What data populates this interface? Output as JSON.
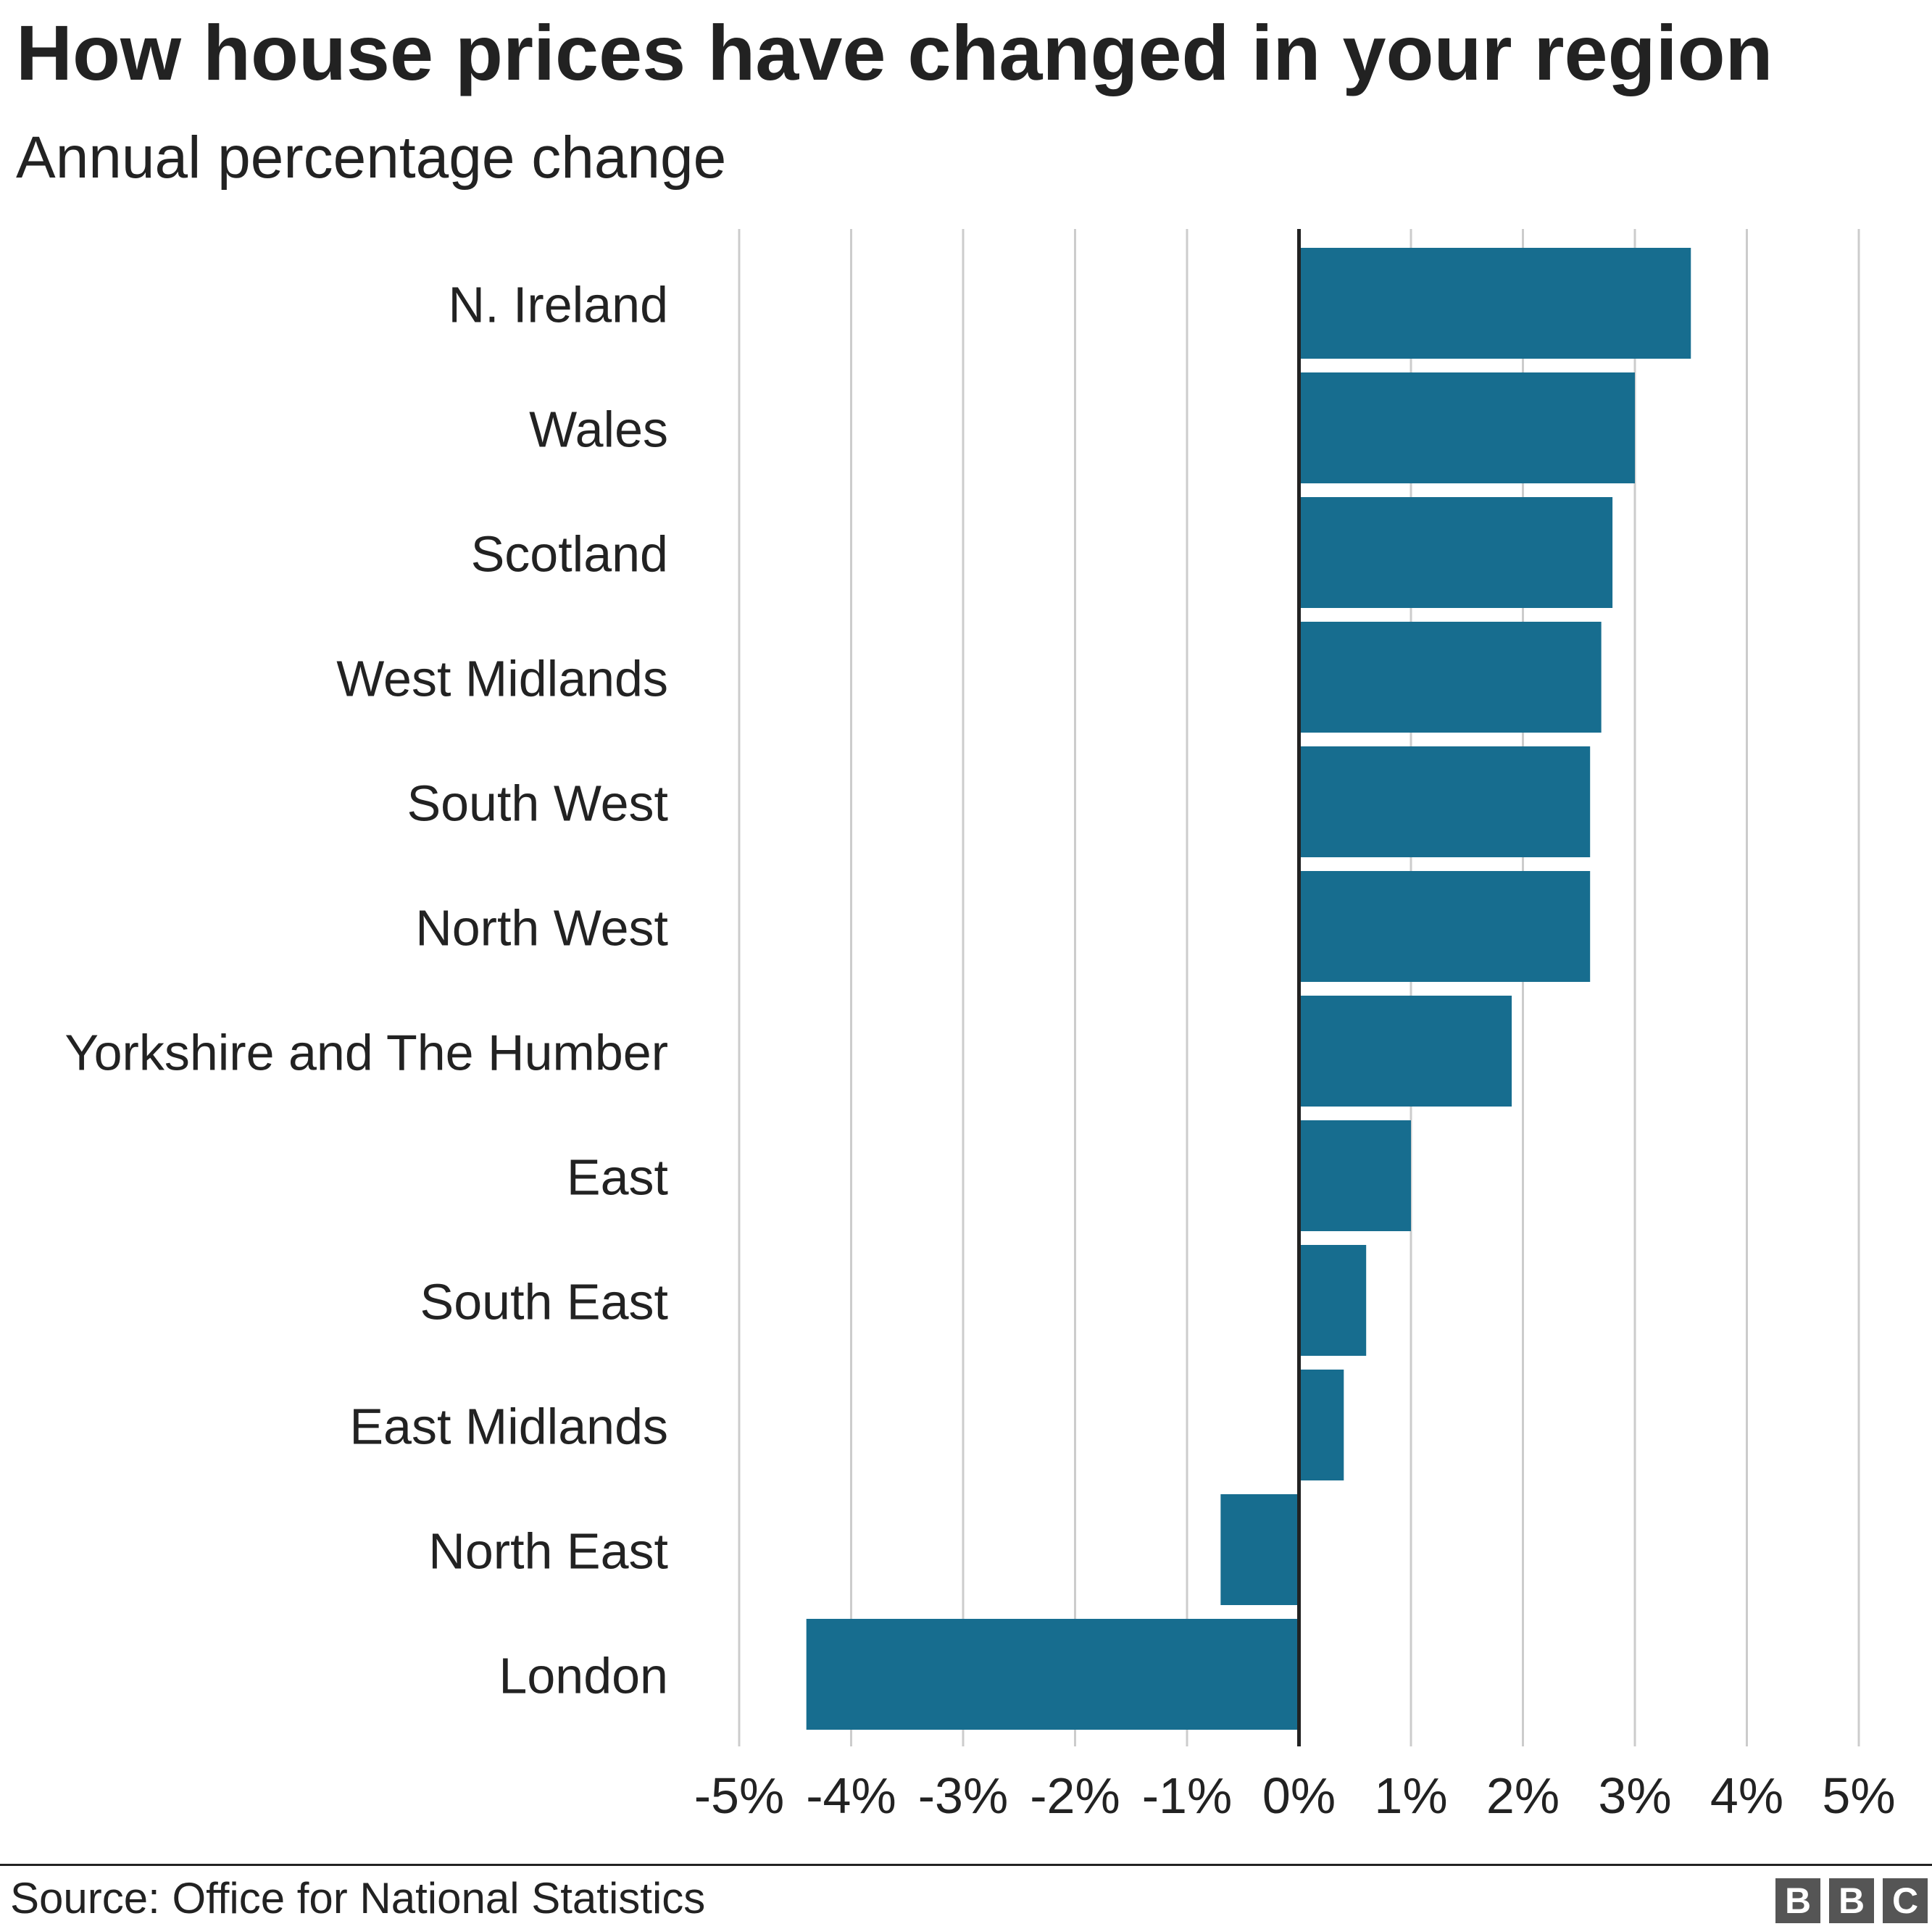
{
  "chart_data": {
    "type": "bar",
    "orientation": "horizontal",
    "title": "How house prices have changed in your region",
    "subtitle": "Annual percentage change",
    "categories": [
      "N. Ireland",
      "Wales",
      "Scotland",
      "West Midlands",
      "South West",
      "North West",
      "Yorkshire and The Humber",
      "East",
      "South East",
      "East Midlands",
      "North East",
      "London"
    ],
    "values": [
      3.5,
      3.0,
      2.8,
      2.7,
      2.6,
      2.6,
      1.9,
      1.0,
      0.6,
      0.4,
      -0.7,
      -4.4
    ],
    "value_unit": "%",
    "xlim": [
      -5,
      5
    ],
    "x_ticks": [
      -5,
      -4,
      -3,
      -2,
      -1,
      0,
      1,
      2,
      3,
      4,
      5
    ],
    "x_tick_labels": [
      "-5%",
      "-4%",
      "-3%",
      "-2%",
      "-1%",
      "0%",
      "1%",
      "2%",
      "3%",
      "4%",
      "5%"
    ],
    "grid": "vertical",
    "bar_color": "#176d8f",
    "gridline_color": "#cccccc",
    "zero_line_color": "#222222"
  },
  "footer": {
    "source": "Source: Office for National Statistics",
    "logo": [
      "B",
      "B",
      "C"
    ]
  }
}
